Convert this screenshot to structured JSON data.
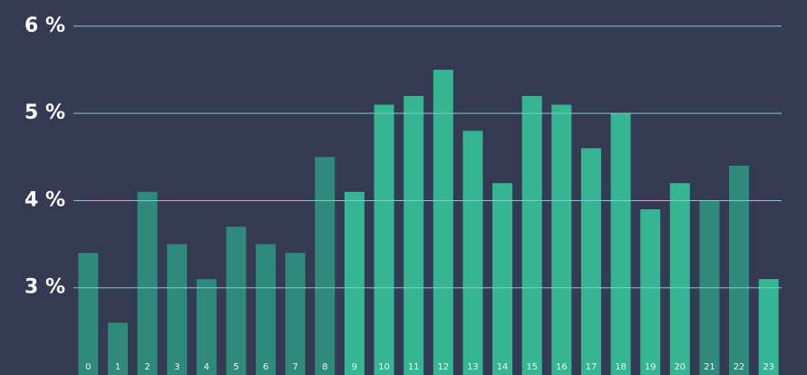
{
  "chart_data": {
    "type": "bar",
    "categories": [
      "0",
      "1",
      "2",
      "3",
      "4",
      "5",
      "6",
      "7",
      "8",
      "9",
      "10",
      "11",
      "12",
      "13",
      "14",
      "15",
      "16",
      "17",
      "18",
      "19",
      "20",
      "21",
      "22",
      "23"
    ],
    "values": [
      3.4,
      2.6,
      4.1,
      3.5,
      3.1,
      3.7,
      3.5,
      3.4,
      4.5,
      4.1,
      5.1,
      5.2,
      5.5,
      4.8,
      4.2,
      5.2,
      5.1,
      4.6,
      5.0,
      3.9,
      4.2,
      4.0,
      4.4,
      3.1
    ],
    "colors": [
      "#2f8a7b",
      "#2f8a7b",
      "#2f8a7b",
      "#2f8a7b",
      "#2f8a7b",
      "#2f8a7b",
      "#2f8a7b",
      "#2f8a7b",
      "#2f8a7b",
      "#36b592",
      "#36b592",
      "#36b592",
      "#36b592",
      "#36b592",
      "#36b592",
      "#36b592",
      "#36b592",
      "#36b592",
      "#36b592",
      "#36b592",
      "#36b592",
      "#2f8a7b",
      "#2f8a7b",
      "#36b592"
    ],
    "ylim": [
      2,
      6.3
    ],
    "yticks": [
      {
        "value": 3,
        "label": "3 %"
      },
      {
        "value": 4,
        "label": "4 %"
      },
      {
        "value": 5,
        "label": "5 %"
      },
      {
        "value": 6,
        "label": "6 %"
      }
    ],
    "grid": true
  }
}
